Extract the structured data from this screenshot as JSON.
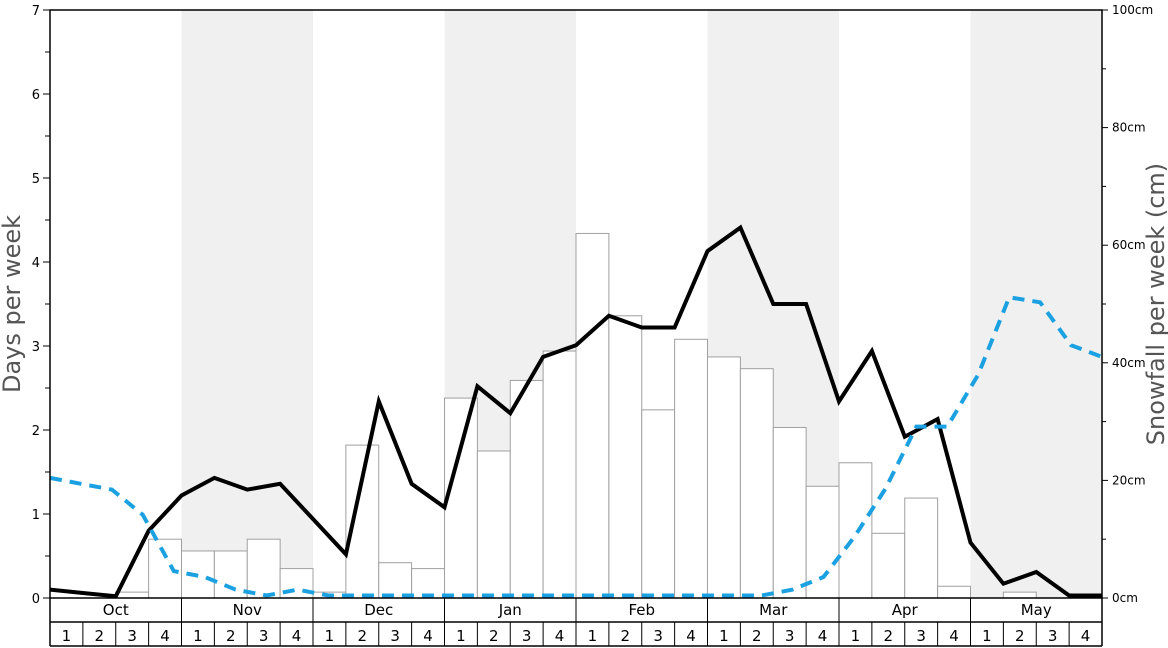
{
  "chart_data": {
    "type": "bar+line",
    "months": [
      "Oct",
      "Nov",
      "Dec",
      "Jan",
      "Feb",
      "Mar",
      "Apr",
      "May"
    ],
    "week_labels": [
      "1",
      "2",
      "3",
      "4"
    ],
    "y_left": {
      "label": "Days per week",
      "ylim": [
        0,
        7
      ],
      "ticks": [
        "0",
        "1",
        "2",
        "3",
        "4",
        "5",
        "6",
        "7"
      ]
    },
    "y_right": {
      "label": "Snowfall per week (cm)",
      "ylim": [
        0,
        100
      ],
      "ticks": [
        "0cm",
        "20cm",
        "40cm",
        "60cm",
        "80cm",
        "100cm"
      ]
    },
    "bars_snowfall_cm": [
      0,
      0,
      1,
      10,
      8,
      8,
      10,
      5,
      1,
      26,
      6,
      5,
      34,
      25,
      37,
      42,
      62,
      48,
      32,
      44,
      41,
      39,
      29,
      19,
      23,
      11,
      17,
      2,
      0,
      1,
      0,
      0
    ],
    "line_days": [
      0.1,
      0.06,
      0.02,
      0.8,
      1.22,
      1.43,
      1.29,
      1.36,
      0.94,
      0.52,
      2.34,
      1.36,
      1.08,
      2.52,
      2.2,
      2.87,
      3.01,
      3.36,
      3.22,
      3.22,
      4.13,
      4.41,
      3.5,
      3.5,
      2.34,
      2.94,
      1.92,
      2.13,
      0.66,
      0.17,
      0.31,
      0.03,
      0.03
    ],
    "line_dashed_days": [
      1.43,
      1.36,
      1.29,
      0.99,
      0.32,
      0.25,
      0.1,
      0.03,
      0.1,
      0.03,
      0.03,
      0.03,
      0.03,
      0.03,
      0.03,
      0.03,
      0.03,
      0.03,
      0.03,
      0.03,
      0.03,
      0.03,
      0.03,
      0.03,
      0.1,
      0.25,
      0.73,
      1.3,
      2.04,
      2.04,
      2.66,
      3.58,
      3.52,
      3.01,
      2.87
    ],
    "colors": {
      "solid_line": "#000000",
      "dashed_line": "#1ba1e2",
      "bar_fill": "#ffffff",
      "bar_stroke": "#a0a0a0",
      "shade": "#f0f0f0",
      "axis": "#000000",
      "axis_title": "#555555"
    },
    "shaded_months": [
      "Nov",
      "Jan",
      "Mar",
      "May"
    ]
  }
}
